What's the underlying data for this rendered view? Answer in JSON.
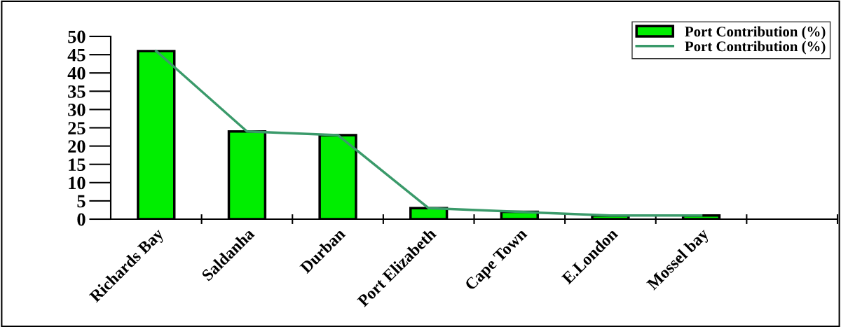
{
  "chart_data": {
    "type": "bar",
    "categories": [
      "Richards Bay",
      "Saldanha",
      "Durban",
      "Port Elizabeth",
      "Cape Town",
      "E.London",
      "Mossel bay",
      null
    ],
    "series": [
      {
        "name": "Port Contribution (%)",
        "color": "#00ee00",
        "values": [
          46,
          24,
          23,
          3,
          2,
          1,
          1,
          null
        ]
      },
      {
        "name": "Port Contribution (%)",
        "type": "line",
        "color": "#3a9a6a",
        "values": [
          46,
          24,
          23,
          3,
          2,
          1,
          1,
          null
        ]
      }
    ],
    "ylim": [
      0,
      50
    ],
    "yticks": [
      0,
      5,
      10,
      15,
      20,
      25,
      30,
      35,
      40,
      45,
      50
    ],
    "grid": false,
    "legend": "top right",
    "marker": "none",
    "line_style": "solid"
  }
}
